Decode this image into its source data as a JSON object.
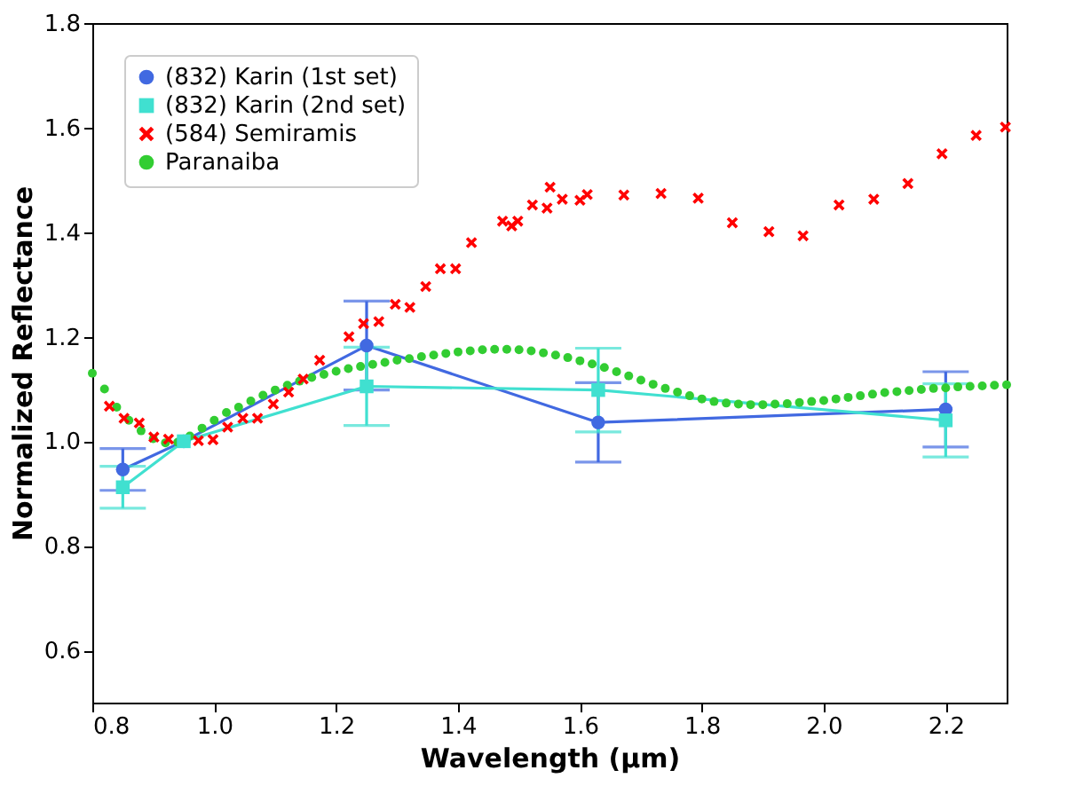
{
  "chart_data": {
    "type": "scatter",
    "xlabel": "Wavelength (µm)",
    "ylabel": "Normalized Reflectance",
    "xlim": [
      0.8,
      2.3
    ],
    "xticks": [
      {
        "value": 0.8,
        "label": "0.8"
      },
      {
        "value": 1.0,
        "label": "1.0"
      },
      {
        "value": 1.2,
        "label": "1.2"
      },
      {
        "value": 1.4,
        "label": "1.4"
      },
      {
        "value": 1.6,
        "label": "1.6"
      },
      {
        "value": 1.8,
        "label": "1.8"
      },
      {
        "value": 2.0,
        "label": "2.0"
      },
      {
        "value": 2.2,
        "label": "2.2"
      }
    ],
    "ylim": [
      0.5,
      1.8
    ],
    "yticks": [
      {
        "value": 0.6,
        "label": "0.6"
      },
      {
        "value": 0.8,
        "label": "0.8"
      },
      {
        "value": 1.0,
        "label": "1.0"
      },
      {
        "value": 1.2,
        "label": "1.2"
      },
      {
        "value": 1.4,
        "label": "1.4"
      },
      {
        "value": 1.6,
        "label": "1.6"
      },
      {
        "value": 1.8,
        "label": "1.8"
      }
    ],
    "grid": false,
    "legend": "top left",
    "series": [
      {
        "name": "(832) Karin (1st set)",
        "type": "line",
        "marker": "circle",
        "color": "#4169e1",
        "x": [
          0.85,
          0.95,
          1.25,
          1.63,
          2.2
        ],
        "values": [
          0.946,
          1.0,
          1.183,
          1.036,
          1.061
        ],
        "errors": [
          0.04,
          null,
          0.085,
          0.076,
          0.072
        ]
      },
      {
        "name": "(832) Karin (2nd set)",
        "type": "line",
        "marker": "square",
        "color": "#40e0d0",
        "x": [
          0.85,
          0.95,
          1.25,
          1.63,
          2.2
        ],
        "values": [
          0.912,
          1.0,
          1.105,
          1.098,
          1.04
        ],
        "errors": [
          0.04,
          null,
          0.075,
          0.08,
          0.07
        ]
      },
      {
        "name": "(584) Semiramis",
        "marker": "cross",
        "color": "#ff0000",
        "x": [
          0.828,
          0.852,
          0.877,
          0.901,
          0.925,
          0.974,
          0.998,
          1.022,
          1.047,
          1.071,
          1.097,
          1.122,
          1.146,
          1.173,
          1.221,
          1.245,
          1.27,
          1.297,
          1.321,
          1.347,
          1.371,
          1.396,
          1.422,
          1.473,
          1.488,
          1.498,
          1.522,
          1.546,
          1.551,
          1.571,
          1.6,
          1.612,
          1.672,
          1.733,
          1.794,
          1.85,
          1.91,
          1.966,
          2.025,
          2.082,
          2.138,
          2.194,
          2.25,
          2.298
        ],
        "values": [
          1.067,
          1.044,
          1.035,
          1.008,
          1.004,
          1.001,
          1.003,
          1.027,
          1.044,
          1.044,
          1.071,
          1.094,
          1.119,
          1.155,
          1.2,
          1.225,
          1.229,
          1.262,
          1.256,
          1.296,
          1.33,
          1.33,
          1.38,
          1.421,
          1.412,
          1.421,
          1.452,
          1.446,
          1.486,
          1.463,
          1.461,
          1.472,
          1.471,
          1.474,
          1.465,
          1.418,
          1.401,
          1.393,
          1.452,
          1.463,
          1.493,
          1.55,
          1.585,
          1.601
        ]
      },
      {
        "name": "Paranaiba",
        "marker": "circle",
        "color": "#32cd32",
        "x": [
          0.8,
          0.82,
          0.84,
          0.86,
          0.88,
          0.9,
          0.92,
          0.94,
          0.96,
          0.98,
          1.0,
          1.02,
          1.04,
          1.06,
          1.08,
          1.1,
          1.12,
          1.14,
          1.16,
          1.18,
          1.2,
          1.22,
          1.24,
          1.26,
          1.28,
          1.3,
          1.32,
          1.34,
          1.36,
          1.38,
          1.4,
          1.42,
          1.44,
          1.46,
          1.48,
          1.5,
          1.52,
          1.54,
          1.56,
          1.58,
          1.6,
          1.62,
          1.64,
          1.66,
          1.68,
          1.7,
          1.72,
          1.74,
          1.76,
          1.78,
          1.8,
          1.82,
          1.84,
          1.86,
          1.88,
          1.9,
          1.92,
          1.94,
          1.96,
          1.98,
          2.0,
          2.02,
          2.04,
          2.06,
          2.08,
          2.1,
          2.12,
          2.14,
          2.16,
          2.18,
          2.2,
          2.22,
          2.24,
          2.26,
          2.28,
          2.3
        ],
        "values": [
          1.13,
          1.1,
          1.065,
          1.04,
          1.02,
          1.005,
          0.997,
          0.998,
          1.01,
          1.025,
          1.04,
          1.055,
          1.065,
          1.077,
          1.088,
          1.098,
          1.107,
          1.115,
          1.122,
          1.128,
          1.134,
          1.139,
          1.143,
          1.147,
          1.151,
          1.155,
          1.158,
          1.162,
          1.165,
          1.168,
          1.171,
          1.173,
          1.175,
          1.176,
          1.176,
          1.175,
          1.173,
          1.169,
          1.165,
          1.16,
          1.154,
          1.148,
          1.141,
          1.133,
          1.125,
          1.117,
          1.109,
          1.101,
          1.094,
          1.087,
          1.081,
          1.076,
          1.073,
          1.071,
          1.07,
          1.07,
          1.071,
          1.072,
          1.074,
          1.076,
          1.078,
          1.081,
          1.084,
          1.087,
          1.09,
          1.093,
          1.095,
          1.097,
          1.099,
          1.101,
          1.102,
          1.104,
          1.105,
          1.106,
          1.107,
          1.108
        ]
      }
    ]
  }
}
